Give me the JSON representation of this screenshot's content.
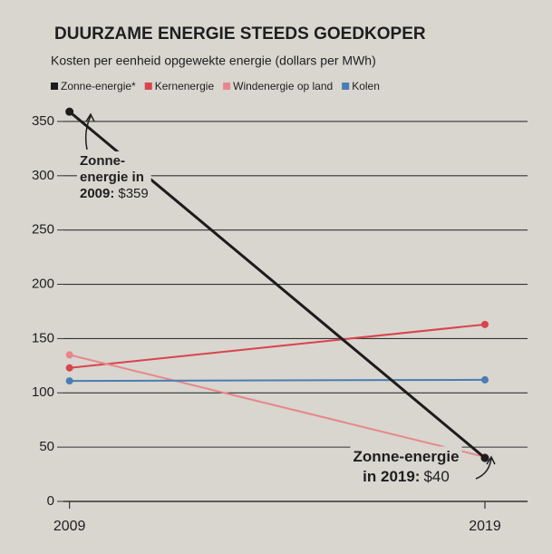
{
  "chart_data": {
    "type": "line",
    "title": "DUURZAME ENERGIE STEEDS GOEDKOPER",
    "subtitle": "Kosten per eenheid opgewekte energie (dollars per MWh)",
    "x": [
      2009,
      2019
    ],
    "xlim": [
      2008.2,
      2020.2
    ],
    "xticks": [
      2009,
      2019
    ],
    "ylim": [
      0,
      370
    ],
    "yticks": [
      0,
      50,
      100,
      150,
      200,
      250,
      300,
      350
    ],
    "grid": true,
    "legend": "top",
    "series": [
      {
        "name": "Zonne-energie*",
        "color": "#1c1c1c",
        "values": [
          359,
          40
        ]
      },
      {
        "name": "Kernenergie",
        "color": "#d9434e",
        "values": [
          123,
          163
        ]
      },
      {
        "name": "Windenergie op land",
        "color": "#e8868b",
        "values": [
          135,
          41
        ]
      },
      {
        "name": "Kolen",
        "color": "#4a7db4",
        "values": [
          111,
          112
        ]
      }
    ],
    "annotations": [
      {
        "bold_lines": [
          "Zonne-",
          "energie in",
          "2009:"
        ],
        "amount": "$359"
      },
      {
        "bold_lines": [
          "Zonne-energie",
          "in 2019:"
        ],
        "amount": "$40"
      }
    ]
  }
}
